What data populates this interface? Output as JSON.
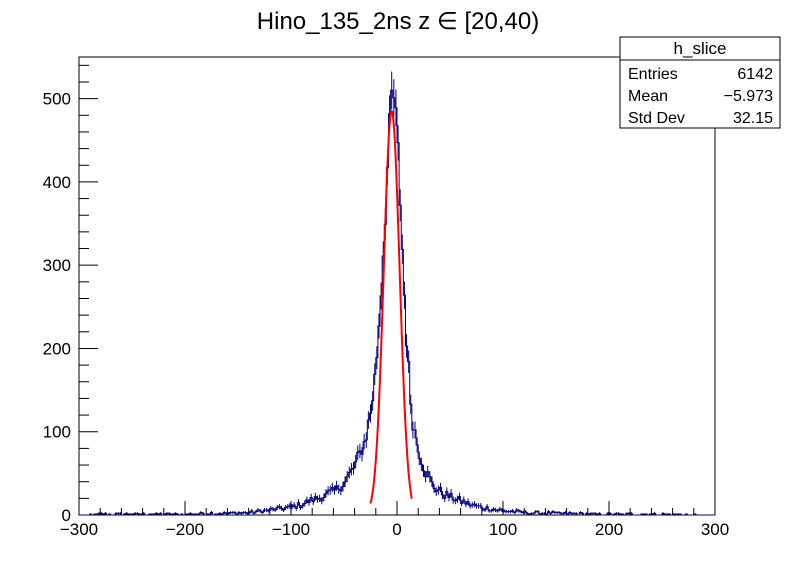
{
  "chart_data": {
    "type": "histogram",
    "title": "Hino_135_2ns z  ∈ [20,40)",
    "xlabel": "",
    "ylabel": "",
    "xlim": [
      -300,
      300
    ],
    "ylim": [
      0,
      550
    ],
    "x_ticks": [
      -300,
      -200,
      -100,
      0,
      100,
      200,
      300
    ],
    "x_tick_labels": [
      "−300",
      "−200",
      "−100",
      "0",
      "100",
      "200",
      "300"
    ],
    "y_ticks": [
      0,
      100,
      200,
      300,
      400,
      500
    ],
    "y_tick_labels": [
      "0",
      "100",
      "200",
      "300",
      "400",
      "500"
    ],
    "grid": false,
    "colors": {
      "histogram": "#000080",
      "fit": "#ff0000",
      "axes": "#000000"
    },
    "bin_width": 2,
    "histogram_shape": {
      "description_values": [
        [
          -300,
          0
        ],
        [
          -280,
          1
        ],
        [
          -260,
          1
        ],
        [
          -240,
          1
        ],
        [
          -220,
          1
        ],
        [
          -200,
          1
        ],
        [
          -180,
          2
        ],
        [
          -160,
          2
        ],
        [
          -140,
          3
        ],
        [
          -120,
          6
        ],
        [
          -100,
          9
        ],
        [
          -90,
          13
        ],
        [
          -80,
          18
        ],
        [
          -70,
          22
        ],
        [
          -60,
          28
        ],
        [
          -50,
          38
        ],
        [
          -40,
          58
        ],
        [
          -30,
          90
        ],
        [
          -24,
          130
        ],
        [
          -20,
          175
        ],
        [
          -16,
          250
        ],
        [
          -12,
          340
        ],
        [
          -8,
          440
        ],
        [
          -5,
          500
        ],
        [
          -3,
          500
        ],
        [
          0,
          460
        ],
        [
          3,
          380
        ],
        [
          6,
          290
        ],
        [
          10,
          190
        ],
        [
          14,
          120
        ],
        [
          20,
          80
        ],
        [
          26,
          55
        ],
        [
          34,
          35
        ],
        [
          44,
          25
        ],
        [
          54,
          20
        ],
        [
          66,
          14
        ],
        [
          80,
          9
        ],
        [
          100,
          5
        ],
        [
          120,
          3
        ],
        [
          150,
          2
        ],
        [
          200,
          1
        ],
        [
          250,
          1
        ],
        [
          300,
          0
        ]
      ]
    },
    "fit": {
      "type": "gaussian",
      "amplitude": 485,
      "mean": -5,
      "sigma": 7.5,
      "x_range": [
        -25,
        14
      ]
    },
    "stats_box": {
      "name": "h_slice",
      "rows": [
        {
          "label": "Entries",
          "value": "6142"
        },
        {
          "label": "Mean",
          "value": "−5.973"
        },
        {
          "label": "Std Dev",
          "value": "32.15"
        }
      ]
    }
  }
}
